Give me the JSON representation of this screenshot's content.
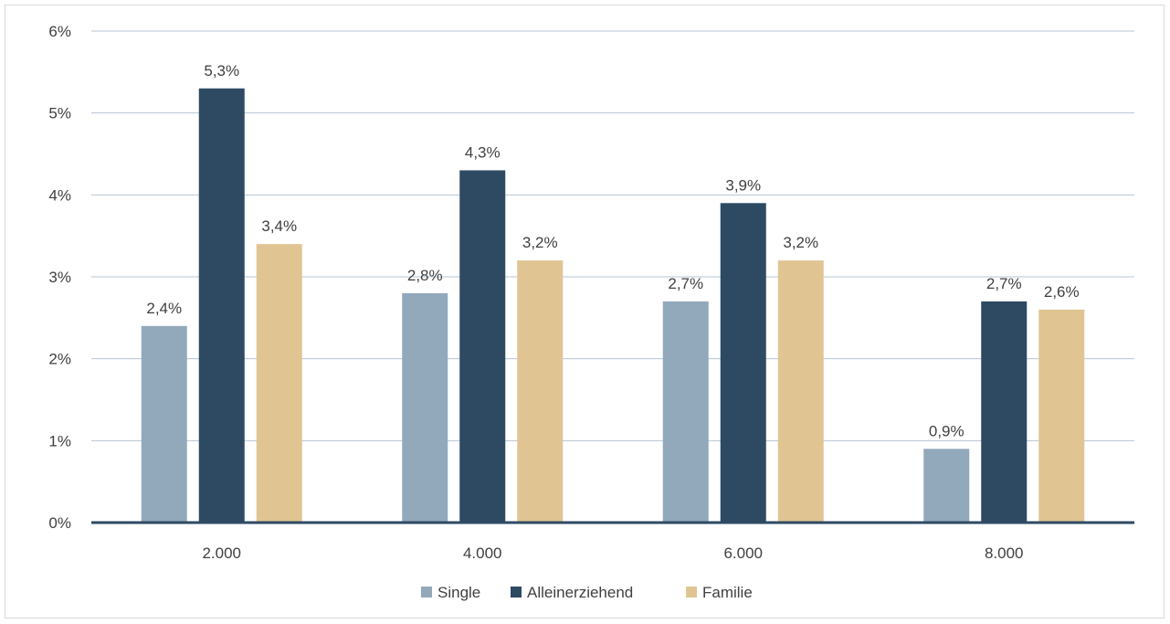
{
  "chart_data": {
    "type": "bar",
    "categories": [
      "2.000",
      "4.000",
      "6.000",
      "8.000"
    ],
    "series": [
      {
        "name": "Single",
        "values": [
          2.4,
          2.8,
          2.7,
          0.9
        ],
        "labels": [
          "2,4%",
          "2,8%",
          "2,7%",
          "0,9%"
        ],
        "color": "#92a9bc"
      },
      {
        "name": "Alleinerziehend",
        "values": [
          5.3,
          4.3,
          3.9,
          2.7
        ],
        "labels": [
          "5,3%",
          "4,3%",
          "3,9%",
          "2,7%"
        ],
        "color": "#2e4a63"
      },
      {
        "name": "Familie",
        "values": [
          3.4,
          3.2,
          3.2,
          2.6
        ],
        "labels": [
          "3,4%",
          "3,2%",
          "3,2%",
          "2,6%"
        ],
        "color": "#e0c593"
      }
    ],
    "y_ticks": [
      "0%",
      "1%",
      "2%",
      "3%",
      "4%",
      "5%",
      "6%"
    ],
    "ylim": [
      0,
      6
    ],
    "title": "",
    "xlabel": "",
    "ylabel": "",
    "grid": true,
    "legend_position": "bottom"
  },
  "colors": {
    "gridline": "#b4c4d4",
    "axis": "#2e4a63",
    "text": "#404040"
  }
}
